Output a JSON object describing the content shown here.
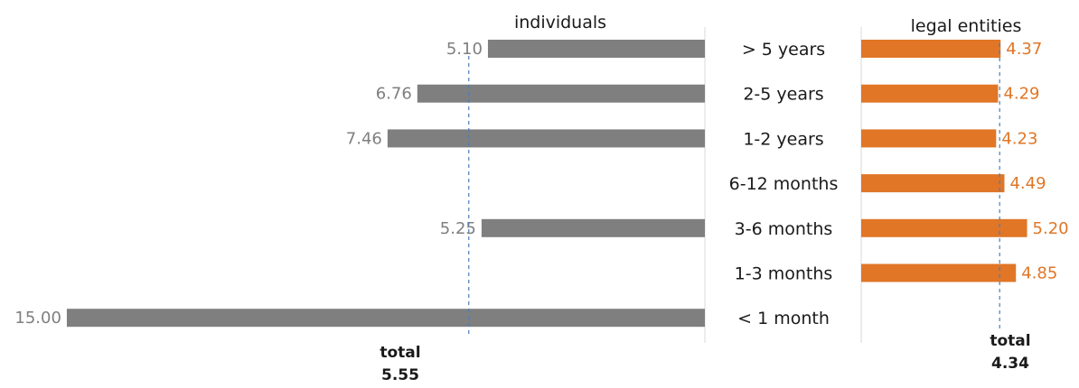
{
  "chart_data": {
    "type": "bar",
    "categories": [
      "> 5 years",
      "2-5 years",
      "1-2 years",
      "6-12 months",
      "3-6 months",
      "1-3 months",
      "< 1 month"
    ],
    "series": [
      {
        "name": "individuals",
        "values": [
          5.1,
          6.76,
          7.46,
          null,
          5.25,
          null,
          15.0
        ],
        "labels": [
          "5.10",
          "6.76",
          "7.46",
          "",
          "5.25",
          "",
          "15.00"
        ],
        "color": "#7f7f7f",
        "side": "left"
      },
      {
        "name": "legal entities",
        "values": [
          4.37,
          4.29,
          4.23,
          4.49,
          5.2,
          4.85,
          null
        ],
        "labels": [
          "4.37",
          "4.29",
          "4.23",
          "4.49",
          "5.20",
          "4.85",
          ""
        ],
        "color": "#e07626",
        "side": "right"
      }
    ],
    "totals": [
      {
        "series": "individuals",
        "label": "total",
        "value": 5.55,
        "value_label": "5.55"
      },
      {
        "series": "legal entities",
        "label": "total",
        "value": 4.34,
        "value_label": "4.34"
      }
    ],
    "left_xlim": [
      0,
      15
    ],
    "right_xlim": [
      0,
      15
    ],
    "total_line_color": "#4a7ebb",
    "legend": "none",
    "grid": false
  }
}
